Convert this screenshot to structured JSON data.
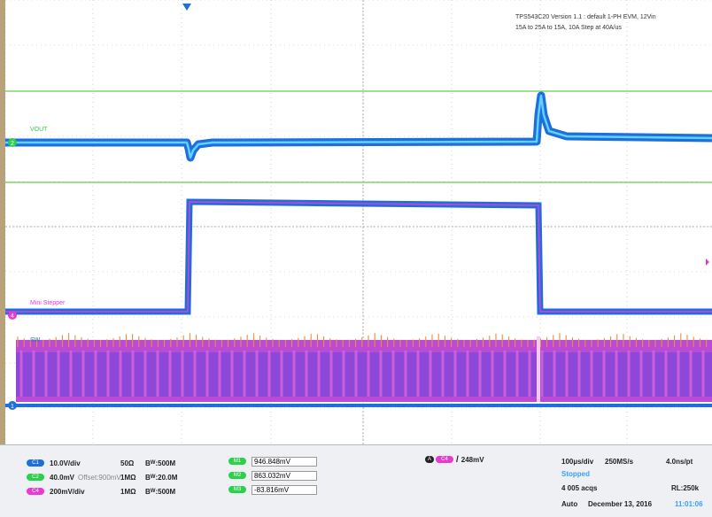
{
  "annotation": {
    "line1": "TPS543C20 Version 1.1 : default 1-PH EVM, 12Vin",
    "line2": "15A to 25A to 15A, 10A Step at 40A/us"
  },
  "channels": {
    "vout_label": "VOUT",
    "stepper_label": "Mini Stepper",
    "sw_label": "SW",
    "ch2_marker": "2",
    "ch4_marker": "4",
    "ch1_marker": "1"
  },
  "colors": {
    "ch1": "#1e6fdc",
    "ch2": "#2bd14a",
    "ch4": "#e83ad2",
    "sw_orange": "#f08a3a",
    "grid": "#b4b4b4",
    "ref_green": "#7fd66b"
  },
  "settings": {
    "ch1": {
      "badge": "C1",
      "scale": "10.0V/div",
      "impedance": "50Ω",
      "bw_label": "B",
      "bw_sub": "W",
      "bw": ":500M"
    },
    "ch2": {
      "badge": "C2",
      "scale": "40.0mV",
      "offset": "Offset:900mV",
      "impedance": "1MΩ",
      "bw_label": "B",
      "bw_sub": "W",
      "bw": ":20.0M"
    },
    "ch4": {
      "badge": "C4",
      "scale": "200mV/div",
      "impedance": "1MΩ",
      "bw_label": "B",
      "bw_sub": "W",
      "bw": ":500M"
    }
  },
  "measurements": [
    {
      "badge": "M1",
      "value": "946.848mV"
    },
    {
      "badge": "M2",
      "value": "863.032mV"
    },
    {
      "badge": "M3",
      "value": "-83.816mV"
    }
  ],
  "trigger": {
    "badge_a": "A",
    "badge_ch": "C4",
    "slope_icon": "/",
    "level": "248mV"
  },
  "acquisition": {
    "timebase": "100µs/div",
    "sample_rate": "250MS/s",
    "resolution": "4.0ns/pt",
    "status": "Stopped",
    "acqs": "4 005 acqs",
    "record_length": "RL:250k",
    "mode": "Auto",
    "date": "December 13, 2016",
    "time": "11:01:06"
  }
}
